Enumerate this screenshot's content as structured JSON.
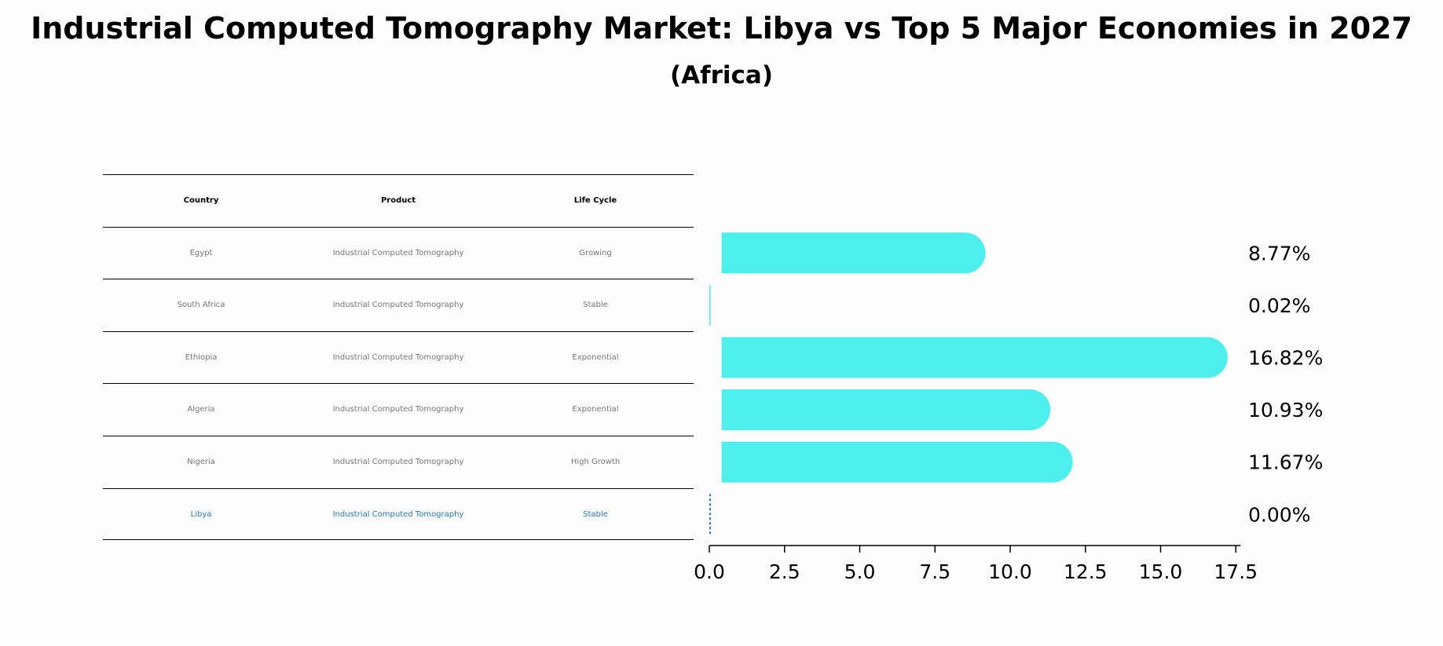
{
  "title": "Industrial Computed Tomography Market: Libya vs Top 5 Major Economies in 2027",
  "subtitle": "(Africa)",
  "table": {
    "headers": [
      "Country",
      "Product",
      "Life Cycle"
    ],
    "rows": [
      {
        "country": "Egypt",
        "product": "Industrial Computed Tomography",
        "life_cycle": "Growing"
      },
      {
        "country": "South Africa",
        "product": "Industrial Computed Tomography",
        "life_cycle": "Stable"
      },
      {
        "country": "Ethiopia",
        "product": "Industrial Computed Tomography",
        "life_cycle": "Exponential"
      },
      {
        "country": "Algeria",
        "product": "Industrial Computed Tomography",
        "life_cycle": "Exponential"
      },
      {
        "country": "Nigeria",
        "product": "Industrial Computed Tomography",
        "life_cycle": "High Growth"
      },
      {
        "country": "Libya",
        "product": "Industrial Computed Tomography",
        "life_cycle": "Stable"
      }
    ]
  },
  "colors": {
    "bar": "#4cefec",
    "highlight": "#1f77c4",
    "row_text": "#777777"
  },
  "chart_data": {
    "type": "bar",
    "orientation": "horizontal",
    "categories": [
      "Egypt",
      "South Africa",
      "Ethiopia",
      "Algeria",
      "Nigeria",
      "Libya"
    ],
    "values": [
      8.77,
      0.02,
      16.82,
      10.93,
      11.67,
      0.0
    ],
    "value_labels": [
      "8.77%",
      "0.02%",
      "16.82%",
      "10.93%",
      "11.67%",
      "0.00%"
    ],
    "highlight": "Libya",
    "xlim": [
      0,
      17.66
    ],
    "xticks": [
      0.0,
      2.5,
      5.0,
      7.5,
      10.0,
      12.5,
      15.0,
      17.5
    ],
    "xtick_labels": [
      "0.0",
      "2.5",
      "5.0",
      "7.5",
      "10.0",
      "12.5",
      "15.0",
      "17.5"
    ],
    "xlabel": "",
    "ylabel": "",
    "grid": false
  }
}
